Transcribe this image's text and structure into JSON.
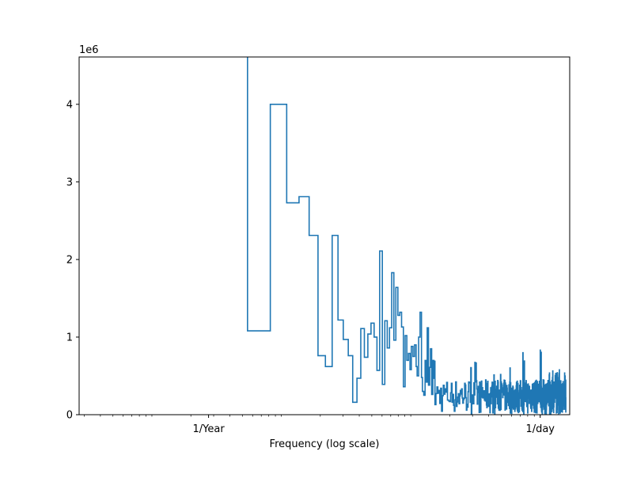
{
  "chart_data": {
    "type": "line",
    "drawstyle": "steps",
    "xscale": "log",
    "xlabel": "Frequency (log scale)",
    "ylabel": "",
    "y_multiplier_label": "1e6",
    "x_ticks": [
      {
        "label": "1/Year",
        "value": 0.00274
      },
      {
        "label": "1/day",
        "value": 1
      }
    ],
    "y_ticks": [
      {
        "label": "0",
        "value": 0
      },
      {
        "label": "1",
        "value": 1000000
      },
      {
        "label": "2",
        "value": 2000000
      },
      {
        "label": "3",
        "value": 3000000
      },
      {
        "label": "4",
        "value": 4000000
      }
    ],
    "xlim": [
      0.000274,
      1.69
    ],
    "ylim": [
      0,
      4610000
    ],
    "grid": false,
    "series_color": "#1f77b4",
    "series": [
      {
        "name": "",
        "points": [
          [
            0.00548,
            4610000
          ],
          [
            0.00548,
            1080000
          ],
          [
            0.00822,
            1080000
          ],
          [
            0.00822,
            4000000
          ],
          [
            0.011,
            4000000
          ],
          [
            0.011,
            2730000
          ],
          [
            0.0137,
            2730000
          ],
          [
            0.0137,
            2810000
          ],
          [
            0.0164,
            2810000
          ],
          [
            0.0164,
            2310000
          ],
          [
            0.0192,
            2310000
          ],
          [
            0.0192,
            760000
          ],
          [
            0.0219,
            760000
          ],
          [
            0.0219,
            620000
          ],
          [
            0.0247,
            620000
          ],
          [
            0.0247,
            2310000
          ],
          [
            0.0274,
            2310000
          ],
          [
            0.0274,
            1220000
          ],
          [
            0.0301,
            1220000
          ],
          [
            0.0301,
            970000
          ],
          [
            0.0329,
            970000
          ],
          [
            0.0329,
            760000
          ],
          [
            0.0356,
            760000
          ],
          [
            0.0356,
            160000
          ],
          [
            0.0384,
            160000
          ],
          [
            0.0384,
            470000
          ],
          [
            0.0411,
            470000
          ],
          [
            0.0411,
            1110000
          ],
          [
            0.0438,
            1110000
          ],
          [
            0.0438,
            740000
          ],
          [
            0.0466,
            740000
          ],
          [
            0.0466,
            1040000
          ],
          [
            0.0493,
            1040000
          ],
          [
            0.0493,
            1180000
          ],
          [
            0.0521,
            1180000
          ],
          [
            0.0521,
            1000000
          ],
          [
            0.0548,
            1000000
          ],
          [
            0.0548,
            570000
          ],
          [
            0.0575,
            570000
          ],
          [
            0.0575,
            2110000
          ],
          [
            0.0603,
            2110000
          ],
          [
            0.0603,
            390000
          ],
          [
            0.063,
            390000
          ],
          [
            0.063,
            1210000
          ],
          [
            0.0658,
            1210000
          ],
          [
            0.0658,
            860000
          ],
          [
            0.0685,
            860000
          ],
          [
            0.0685,
            1120000
          ],
          [
            0.0712,
            1120000
          ],
          [
            0.0712,
            1830000
          ],
          [
            0.074,
            1830000
          ],
          [
            0.074,
            960000
          ],
          [
            0.0767,
            960000
          ],
          [
            0.0767,
            1640000
          ],
          [
            0.0795,
            1640000
          ],
          [
            0.0795,
            1280000
          ],
          [
            0.0822,
            1280000
          ],
          [
            0.0822,
            1320000
          ],
          [
            0.0849,
            1320000
          ],
          [
            0.0849,
            1130000
          ],
          [
            0.0877,
            1130000
          ],
          [
            0.0877,
            360000
          ],
          [
            0.0904,
            360000
          ],
          [
            0.0904,
            1020000
          ],
          [
            0.0932,
            1020000
          ],
          [
            0.0932,
            700000
          ],
          [
            0.0959,
            700000
          ],
          [
            0.0959,
            790000
          ],
          [
            0.0986,
            790000
          ],
          [
            0.0986,
            580000
          ],
          [
            0.101,
            580000
          ],
          [
            0.101,
            880000
          ],
          [
            0.104,
            880000
          ],
          [
            0.104,
            750000
          ],
          [
            0.107,
            750000
          ],
          [
            0.107,
            900000
          ],
          [
            0.11,
            900000
          ],
          [
            0.11,
            620000
          ],
          [
            0.112,
            620000
          ],
          [
            0.112,
            500000
          ],
          [
            0.115,
            500000
          ],
          [
            0.115,
            1000000
          ],
          [
            0.118,
            1000000
          ],
          [
            0.118,
            1320000
          ],
          [
            0.121,
            1320000
          ],
          [
            0.121,
            480000
          ],
          [
            0.123,
            480000
          ],
          [
            0.123,
            300000
          ],
          [
            0.126,
            300000
          ],
          [
            0.126,
            250000
          ],
          [
            0.129,
            250000
          ],
          [
            0.129,
            700000
          ],
          [
            0.132,
            700000
          ],
          [
            0.132,
            420000
          ],
          [
            0.134,
            420000
          ],
          [
            0.134,
            1120000
          ],
          [
            0.137,
            1120000
          ],
          [
            0.137,
            380000
          ],
          [
            0.14,
            380000
          ],
          [
            0.14,
            610000
          ],
          [
            0.142,
            610000
          ],
          [
            0.142,
            850000
          ],
          [
            0.145,
            850000
          ],
          [
            0.145,
            260000
          ],
          [
            0.148,
            260000
          ],
          [
            0.148,
            700000
          ],
          [
            0.151,
            700000
          ],
          [
            0.151,
            460000
          ]
        ],
        "noise_band": {
          "x_start": 0.151,
          "x_end": 1.58,
          "peak_envelope": [
            [
              0.151,
              700000
            ],
            [
              0.2,
              800000
            ],
            [
              0.25,
              780000
            ],
            [
              0.3,
              700000
            ],
            [
              0.4,
              600000
            ],
            [
              0.5,
              650000
            ],
            [
              0.7,
              820000
            ],
            [
              1.0,
              860000
            ],
            [
              1.2,
              560000
            ],
            [
              1.4,
              600000
            ],
            [
              1.58,
              560000
            ]
          ],
          "typical_peak": 450000,
          "floor": 0
        }
      }
    ]
  }
}
